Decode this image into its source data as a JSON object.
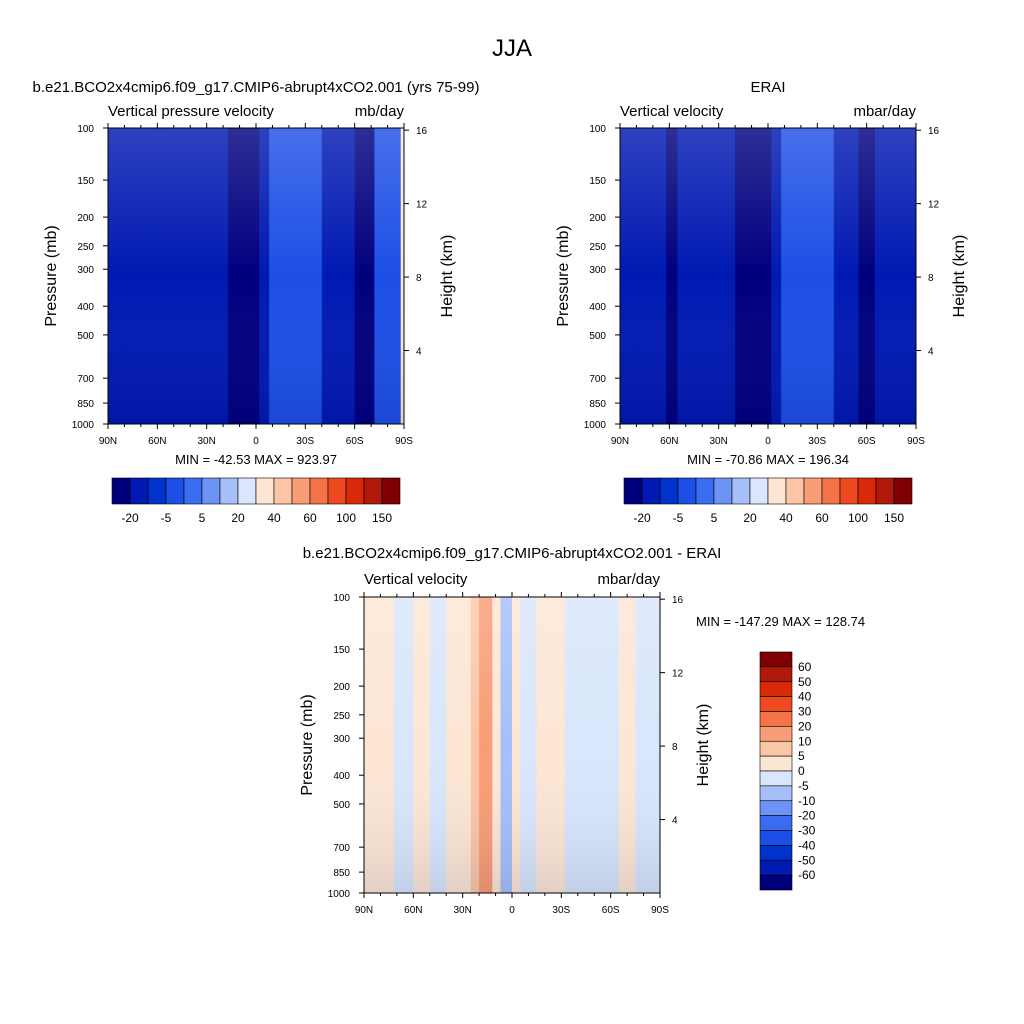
{
  "figure": {
    "title": "JJA"
  },
  "panels": [
    {
      "id": "model",
      "case_title": "b.e21.BCO2x4cmip6.f09_g17.CMIP6-abrupt4xCO2.001 (yrs 75-99)",
      "left_label": "Vertical pressure velocity",
      "right_label": "mb/day",
      "ylabel": "Pressure (mb)",
      "ylabel_right": "Height (km)",
      "stats": "MIN = -42.53  MAX = 923.97"
    },
    {
      "id": "obs",
      "case_title": "ERAI",
      "left_label": "Vertical velocity",
      "right_label": "mbar/day",
      "ylabel": "Pressure (mb)",
      "ylabel_right": "Height (km)",
      "stats": "MIN = -70.86  MAX = 196.34"
    },
    {
      "id": "diff",
      "case_title": "b.e21.BCO2x4cmip6.f09_g17.CMIP6-abrupt4xCO2.001 - ERAI",
      "left_label": "Vertical velocity",
      "right_label": "mbar/day",
      "ylabel": "Pressure (mb)",
      "ylabel_right": "Height (km)",
      "stats": "MIN = -147.29  MAX = 128.74"
    }
  ],
  "axes": {
    "pressure_ticks": [
      "100",
      "150",
      "200",
      "250",
      "300",
      "400",
      "500",
      "700",
      "850",
      "1000"
    ],
    "pressure_values": [
      100,
      150,
      200,
      250,
      300,
      400,
      500,
      700,
      850,
      1000
    ],
    "height_ticks": [
      "16",
      "12",
      "8",
      "4"
    ],
    "height_values": [
      16,
      12,
      8,
      4
    ],
    "lat_ticks": [
      "90N",
      "60N",
      "30N",
      "0",
      "30S",
      "60S",
      "90S"
    ],
    "lat_values": [
      90,
      60,
      30,
      0,
      -30,
      -60,
      -90
    ]
  },
  "colorbars": {
    "absolute": {
      "labels": [
        "-20",
        "-5",
        "5",
        "20",
        "40",
        "60",
        "100",
        "150"
      ],
      "colors": [
        "#00007f",
        "#0019b2",
        "#0032cc",
        "#1d4fe6",
        "#3a6cf0",
        "#6c93f5",
        "#a5c0f8",
        "#d9e6fb",
        "#fde6d4",
        "#fbc6a6",
        "#f99d76",
        "#f47347",
        "#ee4a1f",
        "#d62a08",
        "#b0180a",
        "#7f0000"
      ]
    },
    "difference": {
      "labels": [
        "60",
        "50",
        "40",
        "30",
        "20",
        "10",
        "5",
        "0",
        "-5",
        "-10",
        "-20",
        "-30",
        "-40",
        "-50",
        "-60"
      ],
      "colors": [
        "#7f0000",
        "#b0180a",
        "#d62a08",
        "#ee4a1f",
        "#f47347",
        "#f99d76",
        "#fbc6a6",
        "#fde6d4",
        "#d9e6fb",
        "#a5c0f8",
        "#6c93f5",
        "#3a6cf0",
        "#1d4fe6",
        "#0032cc",
        "#0019b2",
        "#00007f"
      ]
    }
  },
  "chart_data": [
    {
      "type": "heatmap",
      "title": "b.e21.BCO2x4cmip6.f09_g17.CMIP6-abrupt4xCO2.001 (yrs 75-99)",
      "variable": "Vertical pressure velocity",
      "units": "mb/day",
      "xlabel": "",
      "ylabel": "Pressure (mb)",
      "ylabel_right": "Height (km)",
      "xlim": [
        90,
        -90
      ],
      "ylim": [
        1000,
        100
      ],
      "log_y": true,
      "min": -42.53,
      "max": 923.97,
      "levels": [
        -20,
        -5,
        5,
        20,
        40,
        60,
        100,
        150
      ],
      "bands": [
        {
          "lat": [
            90,
            62
          ],
          "value": -15
        },
        {
          "lat": [
            62,
            55
          ],
          "value": -20
        },
        {
          "lat": [
            55,
            30
          ],
          "value": -12
        },
        {
          "lat": [
            30,
            22
          ],
          "value": -8
        },
        {
          "lat": [
            22,
            17
          ],
          "value": -12
        },
        {
          "lat": [
            17,
            8
          ],
          "value": -25
        },
        {
          "lat": [
            8,
            -2
          ],
          "value": -60
        },
        {
          "lat": [
            -2,
            -8
          ],
          "value": -20
        },
        {
          "lat": [
            -8,
            -40
          ],
          "value": 10
        },
        {
          "lat": [
            -40,
            -52
          ],
          "value": -8
        },
        {
          "lat": [
            -52,
            -60
          ],
          "value": -12
        },
        {
          "lat": [
            -60,
            -72
          ],
          "value": -30
        },
        {
          "lat": [
            -72,
            -88
          ],
          "value": 15
        },
        {
          "lat": [
            -88,
            -90
          ],
          "value": 150
        }
      ]
    },
    {
      "type": "heatmap",
      "title": "ERAI",
      "variable": "Vertical velocity",
      "units": "mbar/day",
      "xlabel": "",
      "ylabel": "Pressure (mb)",
      "ylabel_right": "Height (km)",
      "xlim": [
        90,
        -90
      ],
      "ylim": [
        1000,
        100
      ],
      "log_y": true,
      "min": -70.86,
      "max": 196.34,
      "levels": [
        -20,
        -5,
        5,
        20,
        40,
        60,
        100,
        150
      ],
      "bands": [
        {
          "lat": [
            90,
            62
          ],
          "value": -15
        },
        {
          "lat": [
            62,
            55
          ],
          "value": -25
        },
        {
          "lat": [
            55,
            32
          ],
          "value": -12
        },
        {
          "lat": [
            32,
            20
          ],
          "value": -8
        },
        {
          "lat": [
            20,
            8
          ],
          "value": -25
        },
        {
          "lat": [
            8,
            -2
          ],
          "value": -70
        },
        {
          "lat": [
            -2,
            -8
          ],
          "value": -20
        },
        {
          "lat": [
            -8,
            -40
          ],
          "value": 10
        },
        {
          "lat": [
            -40,
            -55
          ],
          "value": -10
        },
        {
          "lat": [
            -55,
            -65
          ],
          "value": -30
        },
        {
          "lat": [
            -65,
            -90
          ],
          "value": -15
        }
      ]
    },
    {
      "type": "heatmap",
      "title": "b.e21.BCO2x4cmip6.f09_g17.CMIP6-abrupt4xCO2.001 - ERAI",
      "variable": "Vertical velocity",
      "units": "mbar/day",
      "xlabel": "",
      "ylabel": "Pressure (mb)",
      "ylabel_right": "Height (km)",
      "xlim": [
        90,
        -90
      ],
      "ylim": [
        1000,
        100
      ],
      "log_y": true,
      "min": -147.29,
      "max": 128.74,
      "levels": [
        -60,
        -50,
        -40,
        -30,
        -20,
        -10,
        -5,
        0,
        5,
        10,
        20,
        30,
        40,
        50,
        60
      ],
      "bands": [
        {
          "lat": [
            90,
            72
          ],
          "value": 2
        },
        {
          "lat": [
            72,
            60
          ],
          "value": -2
        },
        {
          "lat": [
            60,
            50
          ],
          "value": 2
        },
        {
          "lat": [
            50,
            40
          ],
          "value": -2
        },
        {
          "lat": [
            40,
            25
          ],
          "value": 3
        },
        {
          "lat": [
            25,
            20
          ],
          "value": 5
        },
        {
          "lat": [
            20,
            12
          ],
          "value": 12
        },
        {
          "lat": [
            12,
            7
          ],
          "value": 3
        },
        {
          "lat": [
            7,
            0
          ],
          "value": -8
        },
        {
          "lat": [
            0,
            -5
          ],
          "value": 2
        },
        {
          "lat": [
            -5,
            -15
          ],
          "value": -3
        },
        {
          "lat": [
            -15,
            -32
          ],
          "value": 3
        },
        {
          "lat": [
            -32,
            -45
          ],
          "value": -2
        },
        {
          "lat": [
            -45,
            -65
          ],
          "value": -4
        },
        {
          "lat": [
            -65,
            -75
          ],
          "value": 2
        },
        {
          "lat": [
            -75,
            -90
          ],
          "value": -3
        }
      ]
    }
  ]
}
